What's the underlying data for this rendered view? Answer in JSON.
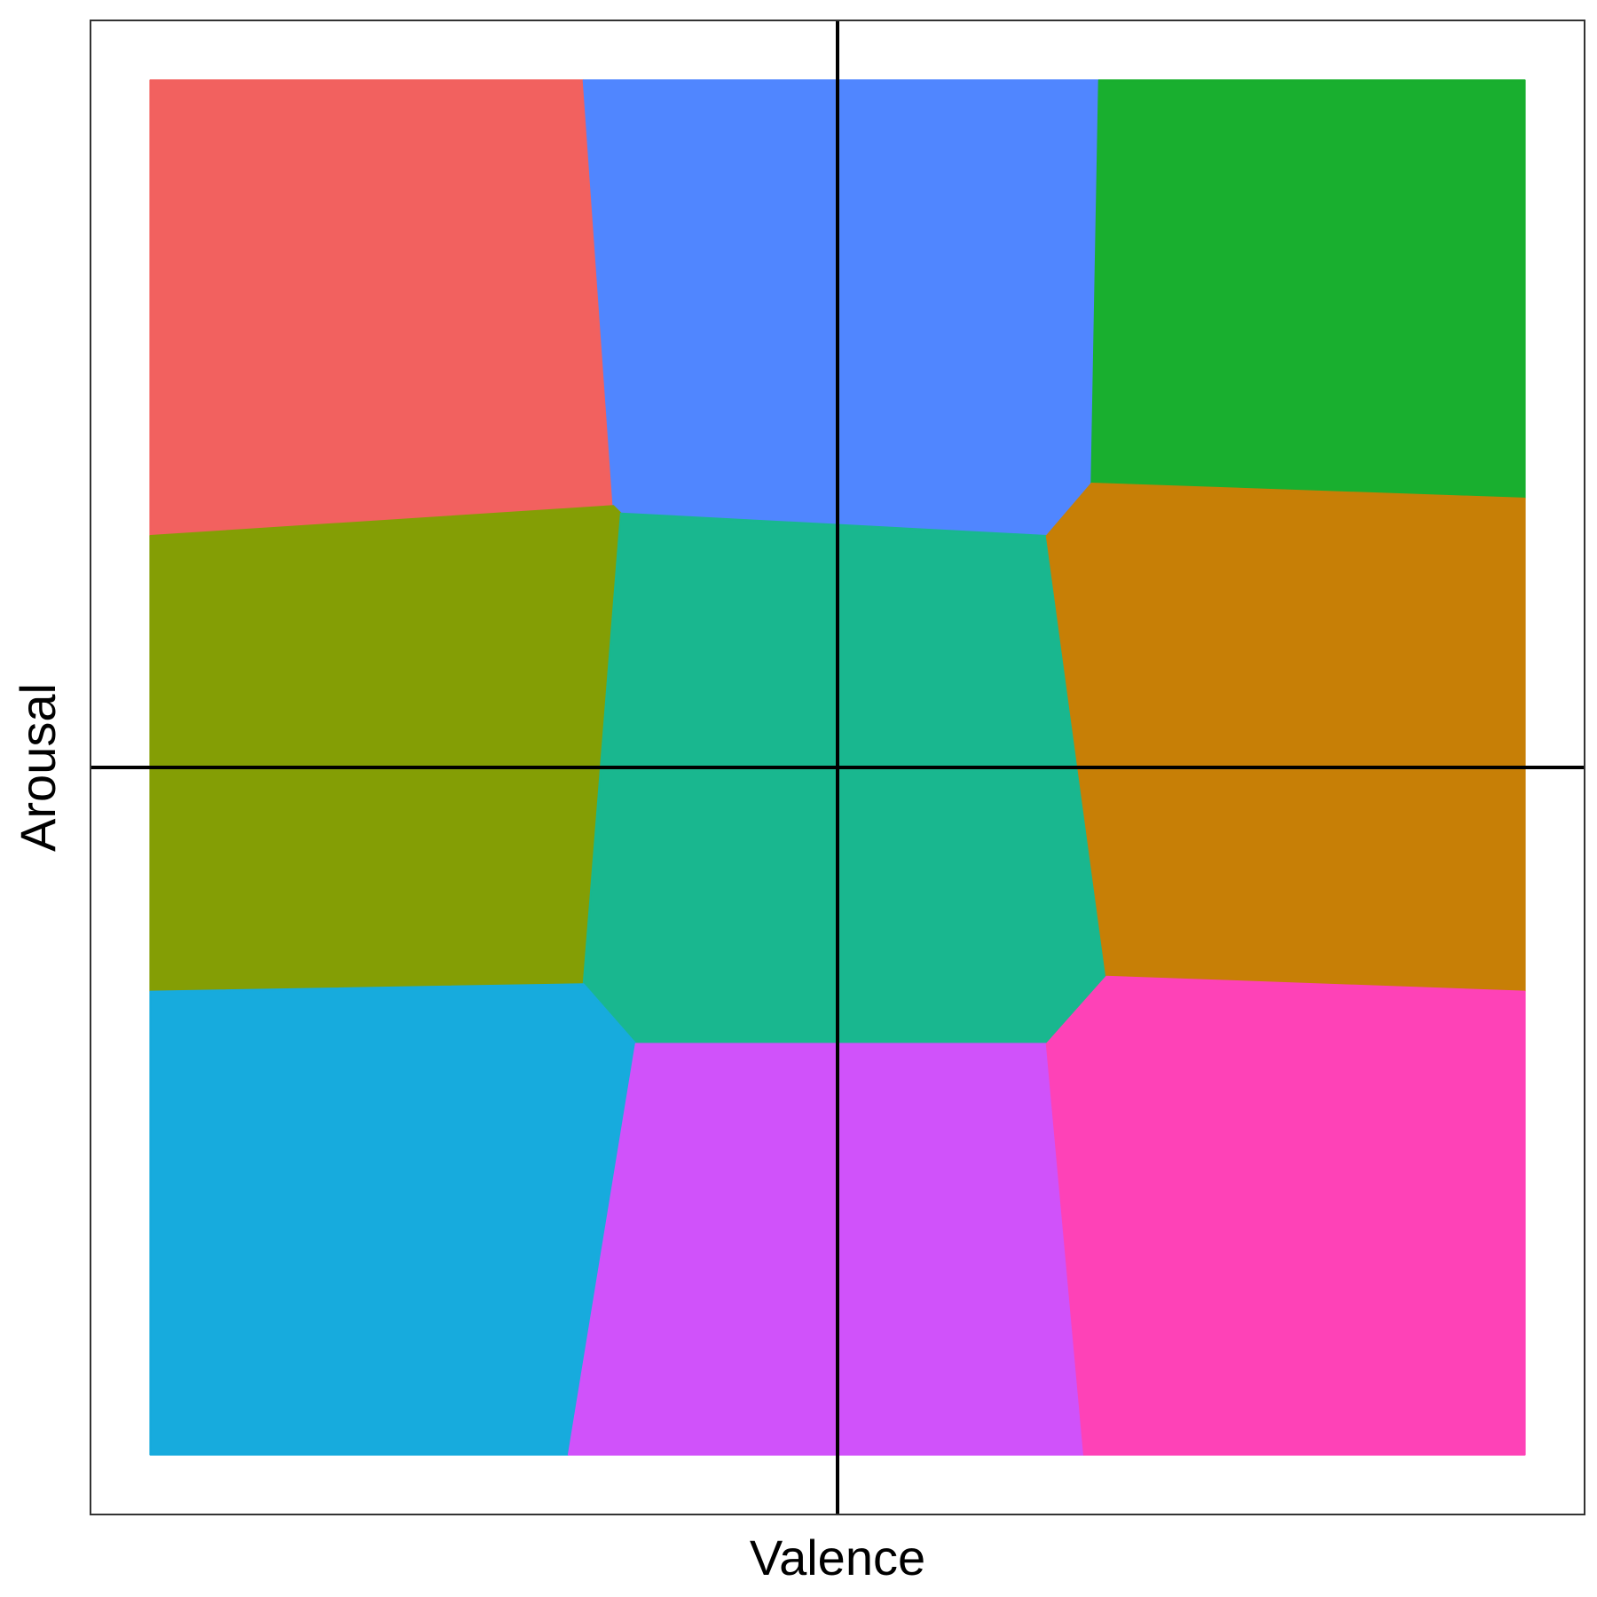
{
  "chart_data": {
    "type": "heatmap",
    "title": "",
    "xlabel": "Valence",
    "ylabel": "Arousal",
    "xlim": [
      -1,
      1
    ],
    "ylim": [
      -1,
      1
    ],
    "grid": false,
    "ticks": false,
    "reference_lines": {
      "x": 0,
      "y": 0
    },
    "regions": [
      {
        "color": "#F2615F",
        "polygon": [
          [
            -0.92,
            0.92
          ],
          [
            -0.34,
            0.92
          ],
          [
            -0.3,
            0.35
          ],
          [
            -0.92,
            0.31
          ]
        ]
      },
      {
        "color": "#5086FF",
        "polygon": [
          [
            -0.34,
            0.92
          ],
          [
            0.35,
            0.92
          ],
          [
            0.34,
            0.38
          ],
          [
            0.28,
            0.31
          ],
          [
            -0.29,
            0.34
          ],
          [
            -0.3,
            0.35
          ]
        ]
      },
      {
        "color": "#19AF2F",
        "polygon": [
          [
            0.35,
            0.92
          ],
          [
            0.92,
            0.92
          ],
          [
            0.92,
            0.36
          ],
          [
            0.34,
            0.38
          ]
        ]
      },
      {
        "color": "#849E05",
        "polygon": [
          [
            -0.92,
            0.31
          ],
          [
            -0.3,
            0.35
          ],
          [
            -0.29,
            0.34
          ],
          [
            -0.34,
            -0.29
          ],
          [
            -0.92,
            -0.3
          ]
        ]
      },
      {
        "color": "#19B78F",
        "polygon": [
          [
            -0.29,
            0.34
          ],
          [
            0.28,
            0.31
          ],
          [
            0.36,
            -0.28
          ],
          [
            0.28,
            -0.37
          ],
          [
            -0.27,
            -0.37
          ],
          [
            -0.34,
            -0.29
          ]
        ]
      },
      {
        "color": "#C77F06",
        "polygon": [
          [
            0.34,
            0.38
          ],
          [
            0.92,
            0.36
          ],
          [
            0.92,
            -0.3
          ],
          [
            0.36,
            -0.28
          ],
          [
            0.28,
            0.31
          ]
        ]
      },
      {
        "color": "#17ABDD",
        "polygon": [
          [
            -0.92,
            -0.3
          ],
          [
            -0.34,
            -0.29
          ],
          [
            -0.27,
            -0.37
          ],
          [
            -0.36,
            -0.92
          ],
          [
            -0.92,
            -0.92
          ]
        ]
      },
      {
        "color": "#D052FA",
        "polygon": [
          [
            -0.27,
            -0.37
          ],
          [
            0.28,
            -0.37
          ],
          [
            0.33,
            -0.92
          ],
          [
            -0.36,
            -0.92
          ]
        ]
      },
      {
        "color": "#FE42B7",
        "polygon": [
          [
            0.28,
            -0.37
          ],
          [
            0.36,
            -0.28
          ],
          [
            0.92,
            -0.3
          ],
          [
            0.92,
            -0.92
          ],
          [
            0.33,
            -0.92
          ]
        ]
      }
    ]
  }
}
